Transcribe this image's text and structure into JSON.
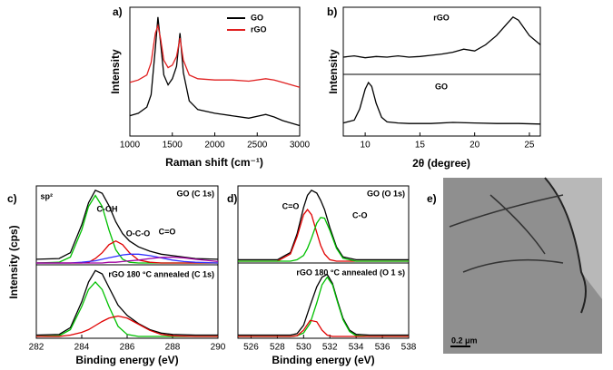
{
  "chart_data": [
    {
      "type": "line",
      "panel_label": "a)",
      "xlabel": "Raman shift (cm⁻¹)",
      "ylabel": "Intensity",
      "xlim": [
        1000,
        3000
      ],
      "xticks": [
        1000,
        1500,
        2000,
        2500,
        3000
      ],
      "ylim": [
        0,
        1
      ],
      "legend": "upper right",
      "x": [
        1000,
        1100,
        1200,
        1250,
        1300,
        1330,
        1360,
        1400,
        1450,
        1500,
        1550,
        1590,
        1630,
        1700,
        1800,
        2000,
        2200,
        2400,
        2600,
        2700,
        2800,
        3000
      ],
      "series": [
        {
          "name": "GO",
          "color": "#000000",
          "values": [
            0.15,
            0.17,
            0.22,
            0.32,
            0.7,
            0.95,
            0.75,
            0.48,
            0.4,
            0.45,
            0.55,
            0.82,
            0.5,
            0.27,
            0.2,
            0.17,
            0.15,
            0.13,
            0.16,
            0.14,
            0.11,
            0.07
          ]
        },
        {
          "name": "rGO",
          "color": "#e02020",
          "values": [
            0.42,
            0.44,
            0.48,
            0.58,
            0.82,
            0.88,
            0.78,
            0.6,
            0.54,
            0.56,
            0.63,
            0.78,
            0.6,
            0.48,
            0.45,
            0.44,
            0.44,
            0.43,
            0.45,
            0.44,
            0.42,
            0.38
          ]
        }
      ]
    },
    {
      "type": "line",
      "panel_label": "b)",
      "annotation": "rGO",
      "ylabel": "Intensity",
      "xlim": [
        8,
        26
      ],
      "ylim": [
        0,
        1
      ],
      "x": [
        8,
        9,
        10,
        11,
        12,
        13,
        14,
        15,
        16,
        17,
        18,
        19,
        20,
        21,
        22,
        23,
        23.5,
        24,
        25,
        26
      ],
      "series": [
        {
          "color": "#000000",
          "values": [
            0.25,
            0.27,
            0.24,
            0.26,
            0.25,
            0.27,
            0.25,
            0.26,
            0.28,
            0.3,
            0.33,
            0.38,
            0.35,
            0.45,
            0.6,
            0.8,
            0.9,
            0.85,
            0.6,
            0.45
          ]
        }
      ]
    },
    {
      "type": "line",
      "annotation": "GO",
      "xlabel": "2θ (degree)",
      "xlim": [
        8,
        26
      ],
      "xticks": [
        10,
        15,
        20,
        25
      ],
      "ylim": [
        0,
        1
      ],
      "x": [
        8,
        9,
        9.5,
        10,
        10.3,
        10.6,
        11,
        11.5,
        12,
        13,
        14,
        16,
        18,
        20,
        22,
        24,
        26
      ],
      "series": [
        {
          "color": "#000000",
          "values": [
            0.2,
            0.25,
            0.45,
            0.8,
            0.92,
            0.85,
            0.55,
            0.3,
            0.22,
            0.2,
            0.19,
            0.19,
            0.21,
            0.2,
            0.19,
            0.19,
            0.18
          ]
        }
      ]
    },
    {
      "type": "line",
      "panel_label": "c)",
      "annotation": "GO (C 1s)",
      "ylabel": "Intensity (cps)",
      "peak_labels": [
        "sp²",
        "C-OH",
        "O-C-O",
        "C=O"
      ],
      "xlim": [
        282,
        290
      ],
      "ylim": [
        0,
        1
      ],
      "x": [
        282,
        283,
        283.5,
        284,
        284.3,
        284.6,
        284.9,
        285.2,
        285.5,
        285.8,
        286.1,
        286.5,
        287,
        287.5,
        288,
        288.5,
        289,
        290
      ],
      "series": [
        {
          "color": "#000000",
          "values": [
            0.05,
            0.06,
            0.14,
            0.52,
            0.82,
            0.99,
            0.95,
            0.78,
            0.56,
            0.4,
            0.3,
            0.22,
            0.16,
            0.12,
            0.1,
            0.08,
            0.06,
            0.05
          ]
        },
        {
          "color": "#00c000",
          "values": [
            0,
            0.01,
            0.08,
            0.45,
            0.77,
            0.92,
            0.77,
            0.45,
            0.18,
            0.05,
            0.01,
            0,
            0,
            0,
            0,
            0,
            0,
            0
          ]
        },
        {
          "color": "#e00000",
          "values": [
            0,
            0,
            0,
            0,
            0.01,
            0.06,
            0.14,
            0.25,
            0.3,
            0.25,
            0.14,
            0.04,
            0.01,
            0,
            0,
            0,
            0,
            0
          ]
        },
        {
          "color": "#3030ff",
          "values": [
            0,
            0,
            0,
            0.01,
            0.02,
            0.03,
            0.05,
            0.07,
            0.09,
            0.11,
            0.12,
            0.12,
            0.1,
            0.07,
            0.04,
            0.02,
            0.01,
            0
          ]
        },
        {
          "color": "#a000a0",
          "values": [
            0,
            0,
            0,
            0,
            0,
            0,
            0,
            0.01,
            0.01,
            0.02,
            0.03,
            0.04,
            0.06,
            0.075,
            0.08,
            0.07,
            0.05,
            0.02
          ]
        }
      ]
    },
    {
      "type": "line",
      "annotation": "rGO 180 °C annealed (C 1s)",
      "xlabel": "Binding energy (eV)",
      "xlim": [
        282,
        290
      ],
      "xticks": [
        282,
        284,
        286,
        288,
        290
      ],
      "ylim": [
        0,
        1
      ],
      "x": [
        282,
        283,
        283.5,
        284,
        284.3,
        284.6,
        284.9,
        285.2,
        285.6,
        286,
        286.5,
        287,
        287.5,
        288,
        289,
        290
      ],
      "series": [
        {
          "color": "#000000",
          "values": [
            0.02,
            0.03,
            0.13,
            0.51,
            0.8,
            0.97,
            0.92,
            0.72,
            0.46,
            0.31,
            0.19,
            0.1,
            0.05,
            0.03,
            0.02,
            0.02
          ]
        },
        {
          "color": "#00c000",
          "values": [
            0,
            0.01,
            0.1,
            0.44,
            0.69,
            0.8,
            0.69,
            0.44,
            0.15,
            0.03,
            0,
            0,
            0,
            0,
            0,
            0
          ]
        },
        {
          "color": "#e00000",
          "values": [
            0,
            0,
            0.02,
            0.06,
            0.1,
            0.16,
            0.22,
            0.27,
            0.3,
            0.27,
            0.18,
            0.09,
            0.03,
            0.01,
            0,
            0
          ]
        }
      ]
    },
    {
      "type": "line",
      "panel_label": "d)",
      "annotation": "GO (O 1s)",
      "peak_labels": [
        "C=O",
        "C-O"
      ],
      "xlim": [
        525,
        538
      ],
      "ylim": [
        0,
        1
      ],
      "x": [
        525,
        527,
        528,
        529,
        529.5,
        530,
        530.3,
        530.6,
        531,
        531.3,
        531.6,
        532,
        532.5,
        533,
        534,
        535,
        536,
        538
      ],
      "series": [
        {
          "color": "#000000",
          "values": [
            0.02,
            0.02,
            0.02,
            0.12,
            0.38,
            0.75,
            0.92,
            0.99,
            0.95,
            0.85,
            0.72,
            0.47,
            0.2,
            0.06,
            0.02,
            0.02,
            0.02,
            0.02
          ]
        },
        {
          "color": "#e00000",
          "values": [
            0,
            0,
            0,
            0.1,
            0.34,
            0.65,
            0.72,
            0.65,
            0.4,
            0.22,
            0.1,
            0.02,
            0,
            0,
            0,
            0,
            0,
            0
          ]
        },
        {
          "color": "#00c000",
          "values": [
            0,
            0,
            0,
            0,
            0.02,
            0.08,
            0.18,
            0.32,
            0.53,
            0.61,
            0.6,
            0.43,
            0.18,
            0.04,
            0,
            0,
            0,
            0
          ]
        }
      ]
    },
    {
      "type": "line",
      "annotation": "rGO 180 °C annealed (O 1 s)",
      "xlabel": "Binding energy (eV)",
      "xlim": [
        525,
        538
      ],
      "xticks": [
        526,
        528,
        530,
        532,
        534,
        536,
        538
      ],
      "ylim": [
        0,
        1
      ],
      "x": [
        525,
        527,
        528,
        529,
        529.5,
        530,
        530.5,
        531,
        531.4,
        531.8,
        532.2,
        532.6,
        533,
        533.5,
        534,
        535,
        536,
        538
      ],
      "series": [
        {
          "color": "#000000",
          "values": [
            0.02,
            0.02,
            0.02,
            0.02,
            0.04,
            0.16,
            0.44,
            0.71,
            0.85,
            0.89,
            0.76,
            0.5,
            0.26,
            0.09,
            0.03,
            0.02,
            0.02,
            0.02
          ]
        },
        {
          "color": "#00c000",
          "values": [
            0,
            0,
            0,
            0,
            0.01,
            0.05,
            0.19,
            0.48,
            0.74,
            0.85,
            0.74,
            0.48,
            0.24,
            0.07,
            0.01,
            0,
            0,
            0
          ]
        },
        {
          "color": "#e00000",
          "values": [
            0,
            0,
            0,
            0,
            0.01,
            0.09,
            0.23,
            0.21,
            0.09,
            0.02,
            0,
            0,
            0,
            0,
            0,
            0,
            0,
            0
          ]
        }
      ]
    }
  ],
  "image_panel": {
    "label": "e)",
    "scale_bar": "0.2 μm"
  }
}
